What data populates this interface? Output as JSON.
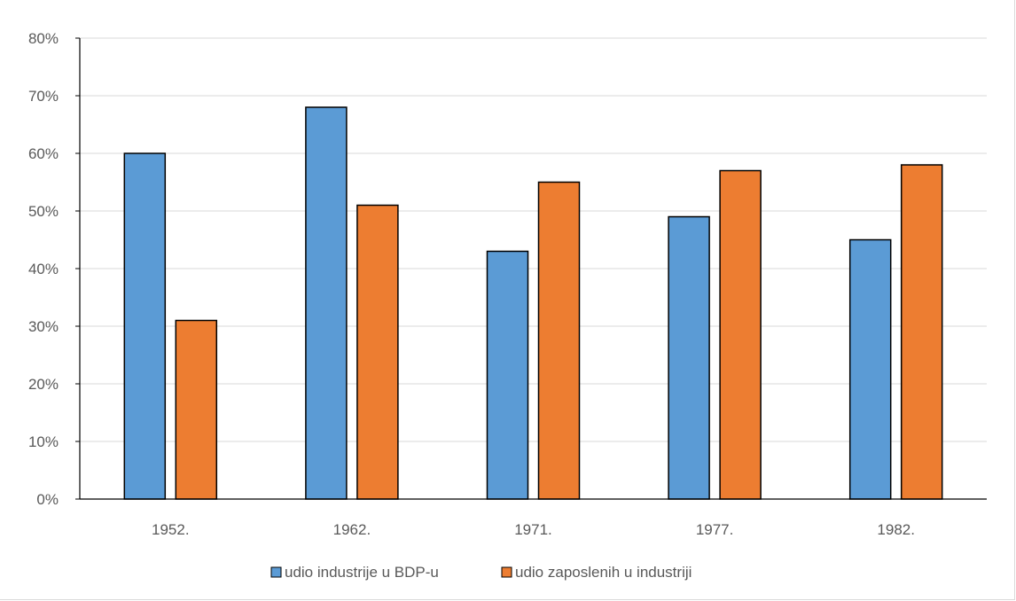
{
  "chart_data": {
    "type": "bar",
    "categories": [
      "1952.",
      "1962.",
      "1971.",
      "1977.",
      "1982."
    ],
    "series": [
      {
        "name": "udio industrije u BDP-u",
        "values": [
          0.6,
          0.68,
          0.43,
          0.49,
          0.45
        ],
        "color": "#5b9bd5"
      },
      {
        "name": "udio zaposlenih u industriji",
        "values": [
          0.31,
          0.51,
          0.55,
          0.57,
          0.58
        ],
        "color": "#ed7d31"
      }
    ],
    "y_ticks": [
      "0%",
      "10%",
      "20%",
      "30%",
      "40%",
      "50%",
      "60%",
      "70%",
      "80%"
    ],
    "ylim": [
      0,
      0.8
    ],
    "grid": true,
    "legend_position": "bottom",
    "title": "",
    "xlabel": "",
    "ylabel": ""
  }
}
